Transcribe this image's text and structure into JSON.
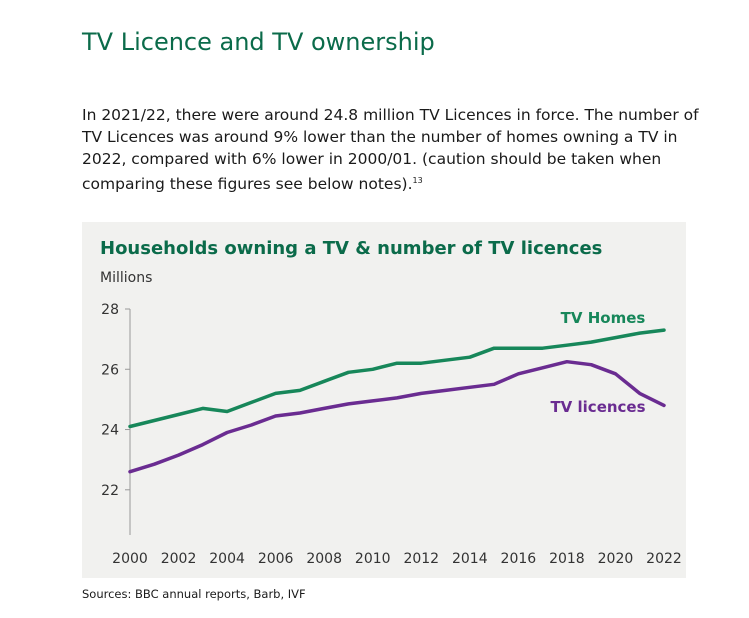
{
  "page": {
    "title": "TV Licence and TV ownership",
    "intro_text": "In 2021/22, there were around 24.8 million TV Licences in force. The number of TV Licences was around 9% lower than the number of homes owning a TV in 2022, compared with 6% lower in 2000/01. (caution should be taken when comparing these figures see below notes).",
    "intro_footnote": "13",
    "sources": "Sources: BBC annual reports, Barb, IVF"
  },
  "chart_data": {
    "type": "line",
    "title": "Households owning a TV & number of TV licences",
    "ylabel": "Millions",
    "xlabel": "",
    "ylim": [
      20.5,
      28
    ],
    "yticks": [
      22,
      24,
      26,
      28
    ],
    "xticks": [
      2000,
      2002,
      2004,
      2006,
      2008,
      2010,
      2012,
      2014,
      2016,
      2018,
      2020,
      2022
    ],
    "x": [
      2000,
      2001,
      2002,
      2003,
      2004,
      2005,
      2006,
      2007,
      2008,
      2009,
      2010,
      2011,
      2012,
      2013,
      2014,
      2015,
      2016,
      2017,
      2018,
      2019,
      2020,
      2021,
      2022
    ],
    "series": [
      {
        "name": "TV Homes",
        "color": "#17875a",
        "values": [
          24.1,
          24.3,
          24.5,
          24.7,
          24.6,
          24.9,
          25.2,
          25.3,
          25.6,
          25.9,
          26.0,
          26.2,
          26.2,
          26.3,
          26.4,
          26.7,
          26.7,
          26.7,
          26.8,
          26.9,
          27.05,
          27.2,
          27.3
        ]
      },
      {
        "name": "TV licences",
        "color": "#6a2c91",
        "values": [
          22.6,
          22.85,
          23.15,
          23.5,
          23.9,
          24.15,
          24.45,
          24.55,
          24.7,
          24.85,
          24.95,
          25.05,
          25.2,
          25.3,
          25.4,
          25.5,
          25.85,
          26.05,
          26.25,
          26.15,
          25.85,
          25.2,
          24.8
        ]
      }
    ]
  }
}
